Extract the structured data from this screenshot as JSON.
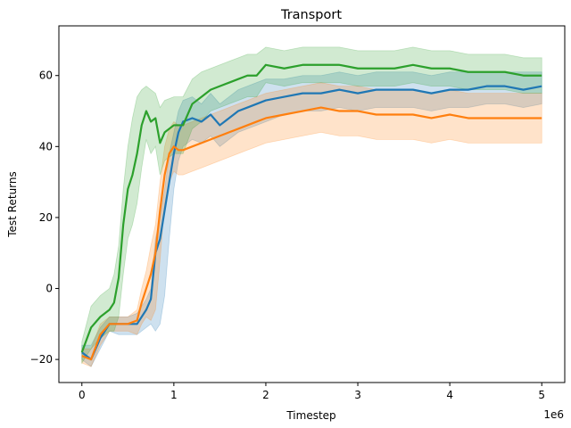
{
  "chart_data": {
    "type": "line",
    "title": "Transport",
    "xlabel": "Timestep",
    "ylabel": "Test Returns",
    "x_offset_label": "1e6",
    "xlim": [
      -0.25,
      5.25
    ],
    "ylim": [
      -26.5,
      74
    ],
    "xticks": [
      0,
      1,
      2,
      3,
      4,
      5
    ],
    "yticks": [
      -20,
      0,
      20,
      40,
      60
    ],
    "grid": false,
    "legend": "none",
    "series": [
      {
        "color": "#1f77b4",
        "x": [
          0,
          0.1,
          0.2,
          0.3,
          0.4,
          0.5,
          0.6,
          0.7,
          0.75,
          0.8,
          0.85,
          0.9,
          0.95,
          1.0,
          1.05,
          1.1,
          1.2,
          1.3,
          1.4,
          1.5,
          1.6,
          1.7,
          1.8,
          1.9,
          2.0,
          2.2,
          2.4,
          2.6,
          2.8,
          3.0,
          3.2,
          3.4,
          3.6,
          3.8,
          4.0,
          4.2,
          4.4,
          4.6,
          4.8,
          5.0
        ],
        "y": [
          -18,
          -20,
          -14,
          -10,
          -10,
          -10,
          -10,
          -6,
          -3,
          10,
          14,
          22,
          30,
          38,
          44,
          47,
          48,
          47,
          49,
          46,
          48,
          50,
          51,
          52,
          53,
          54,
          55,
          55,
          56,
          55,
          56,
          56,
          56,
          55,
          56,
          56,
          57,
          57,
          56,
          57
        ],
        "upper": [
          -16,
          -16,
          -11,
          -8,
          -8,
          -8,
          -7,
          -3,
          0,
          14,
          20,
          28,
          38,
          44,
          50,
          53,
          54,
          52,
          55,
          52,
          54,
          56,
          57,
          58,
          59,
          59,
          60,
          60,
          61,
          60,
          61,
          61,
          61,
          60,
          61,
          61,
          61,
          61,
          61,
          61
        ],
        "lower": [
          -20,
          -22,
          -17,
          -12,
          -13,
          -13,
          -13,
          -11,
          -10,
          -12,
          -10,
          -2,
          14,
          28,
          36,
          40,
          42,
          41,
          43,
          40,
          42,
          44,
          45,
          46,
          47,
          49,
          50,
          50,
          51,
          50,
          51,
          51,
          51,
          50,
          51,
          51,
          52,
          52,
          51,
          52
        ]
      },
      {
        "color": "#ff7f0e",
        "x": [
          0,
          0.1,
          0.2,
          0.3,
          0.4,
          0.5,
          0.6,
          0.65,
          0.7,
          0.75,
          0.8,
          0.85,
          0.9,
          0.95,
          1.0,
          1.05,
          1.1,
          1.2,
          1.3,
          1.4,
          1.5,
          1.6,
          1.7,
          1.8,
          1.9,
          2.0,
          2.2,
          2.4,
          2.6,
          2.8,
          3.0,
          3.2,
          3.4,
          3.6,
          3.8,
          4.0,
          4.2,
          4.4,
          4.6,
          4.8,
          5.0
        ],
        "y": [
          -19,
          -20,
          -13,
          -10,
          -10,
          -10,
          -9,
          -4,
          0,
          4,
          10,
          22,
          32,
          38,
          40,
          39,
          39,
          40,
          41,
          42,
          43,
          44,
          45,
          46,
          47,
          48,
          49,
          50,
          51,
          50,
          50,
          49,
          49,
          49,
          48,
          49,
          48,
          48,
          48,
          48,
          48
        ],
        "upper": [
          -17,
          -17,
          -10,
          -8,
          -8,
          -8,
          -6,
          0,
          5,
          12,
          18,
          30,
          40,
          45,
          47,
          46,
          46,
          47,
          48,
          49,
          50,
          51,
          52,
          53,
          54,
          55,
          56,
          57,
          58,
          57,
          57,
          56,
          56,
          56,
          55,
          56,
          55,
          55,
          55,
          55,
          55
        ],
        "lower": [
          -21,
          -22,
          -16,
          -12,
          -12,
          -12,
          -13,
          -10,
          -8,
          -9,
          -6,
          8,
          24,
          30,
          33,
          32,
          32,
          33,
          34,
          35,
          36,
          37,
          38,
          39,
          40,
          41,
          42,
          43,
          44,
          43,
          43,
          42,
          42,
          42,
          41,
          42,
          41,
          41,
          41,
          41,
          41
        ]
      },
      {
        "color": "#2ca02c",
        "x": [
          0,
          0.1,
          0.2,
          0.3,
          0.35,
          0.4,
          0.45,
          0.5,
          0.55,
          0.6,
          0.65,
          0.7,
          0.75,
          0.8,
          0.85,
          0.9,
          1.0,
          1.1,
          1.2,
          1.3,
          1.4,
          1.5,
          1.6,
          1.7,
          1.8,
          1.9,
          2.0,
          2.2,
          2.4,
          2.6,
          2.8,
          3.0,
          3.2,
          3.4,
          3.6,
          3.8,
          4.0,
          4.2,
          4.4,
          4.6,
          4.8,
          5.0
        ],
        "y": [
          -18,
          -11,
          -8,
          -6,
          -4,
          3,
          18,
          28,
          32,
          38,
          46,
          50,
          47,
          48,
          41,
          44,
          46,
          46,
          52,
          54,
          56,
          57,
          58,
          59,
          60,
          60,
          63,
          62,
          63,
          63,
          63,
          62,
          62,
          62,
          63,
          62,
          62,
          61,
          61,
          61,
          60,
          60
        ],
        "upper": [
          -15,
          -5,
          -2,
          0,
          4,
          12,
          28,
          40,
          48,
          54,
          56,
          57,
          56,
          55,
          51,
          53,
          54,
          54,
          59,
          61,
          62,
          63,
          64,
          65,
          66,
          66,
          68,
          67,
          68,
          68,
          68,
          67,
          67,
          67,
          68,
          67,
          67,
          66,
          66,
          66,
          65,
          65
        ],
        "lower": [
          -21,
          -17,
          -14,
          -12,
          -12,
          -8,
          4,
          14,
          18,
          24,
          34,
          42,
          38,
          40,
          32,
          36,
          38,
          38,
          45,
          47,
          50,
          51,
          52,
          53,
          54,
          54,
          58,
          57,
          58,
          58,
          58,
          57,
          57,
          57,
          58,
          57,
          57,
          56,
          56,
          56,
          55,
          55
        ]
      }
    ]
  }
}
